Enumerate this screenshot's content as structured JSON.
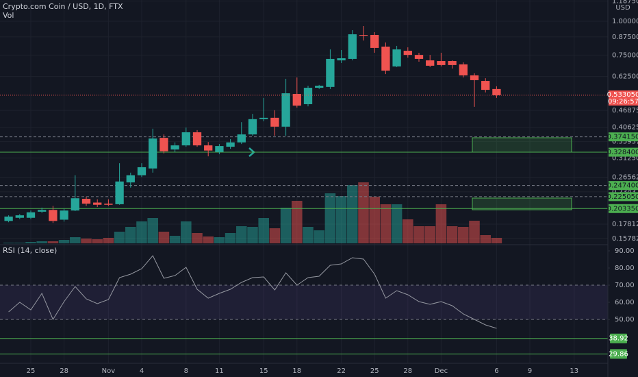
{
  "chart_data": [
    {
      "type": "candlestick",
      "title": "Crypto.com Coin / USD, 1D, FTX",
      "y_unit": "USD",
      "log_scale": true,
      "grid": true,
      "up_color": "#26a69a",
      "down_color": "#ef5350",
      "categories": [
        null,
        null,
        "25",
        null,
        null,
        "28",
        null,
        null,
        null,
        "Nov",
        null,
        null,
        "4",
        null,
        null,
        null,
        "8",
        null,
        null,
        "11",
        null,
        null,
        null,
        "15",
        null,
        null,
        "18",
        null,
        null,
        null,
        "22",
        null,
        null,
        "25",
        null,
        null,
        "28",
        null,
        null,
        "Dec",
        null,
        null,
        null,
        null,
        "6",
        null,
        null,
        "9",
        null,
        null,
        null,
        "13"
      ],
      "ohlc": {
        "open": [
          0.183,
          0.188,
          0.188,
          0.198,
          0.201,
          0.185,
          0.2,
          0.221,
          0.214,
          0.212,
          0.211,
          0.254,
          0.27,
          0.286,
          0.371,
          0.336,
          0.348,
          0.389,
          0.348,
          0.329,
          0.344,
          0.357,
          0.382,
          0.435,
          0.44,
          0.408,
          0.539,
          0.494,
          0.568,
          0.572,
          0.717,
          0.726,
          0.89,
          0.89,
          0.806,
          0.681,
          0.778,
          0.751,
          0.717,
          0.713,
          0.713,
          0.693,
          0.631,
          0.602,
          0.562,
          null,
          null,
          null,
          null,
          null,
          null,
          null
        ],
        "high": [
          0.192,
          0.194,
          0.2,
          0.205,
          0.208,
          0.203,
          0.27,
          0.225,
          0.22,
          0.22,
          0.299,
          0.276,
          0.299,
          0.401,
          0.382,
          0.357,
          0.405,
          0.396,
          0.358,
          0.352,
          0.367,
          0.424,
          0.455,
          0.521,
          0.469,
          0.613,
          0.62,
          0.578,
          0.582,
          0.787,
          0.783,
          0.927,
          0.96,
          0.911,
          0.835,
          0.811,
          0.801,
          0.765,
          0.751,
          0.765,
          0.717,
          0.705,
          0.642,
          0.616,
          0.575,
          null,
          null,
          null,
          null,
          null,
          null,
          null
        ],
        "low": [
          0.181,
          0.186,
          0.186,
          0.196,
          0.18,
          0.182,
          0.199,
          0.208,
          0.206,
          0.208,
          0.21,
          0.243,
          0.266,
          0.276,
          0.325,
          0.329,
          0.344,
          0.344,
          0.317,
          0.323,
          0.338,
          0.352,
          0.378,
          0.427,
          0.378,
          0.378,
          0.48,
          0.485,
          0.562,
          0.562,
          0.701,
          0.717,
          0.849,
          0.765,
          0.638,
          0.677,
          0.734,
          0.709,
          0.677,
          0.681,
          0.669,
          0.62,
          0.483,
          0.546,
          0.521,
          null,
          null,
          null,
          null,
          null,
          null,
          null
        ],
        "close": [
          0.19,
          0.192,
          0.197,
          0.201,
          0.183,
          0.2,
          0.222,
          0.212,
          0.21,
          0.21,
          0.256,
          0.27,
          0.289,
          0.369,
          0.331,
          0.348,
          0.389,
          0.348,
          0.333,
          0.346,
          0.357,
          0.382,
          0.435,
          0.44,
          0.408,
          0.542,
          0.488,
          0.568,
          0.578,
          0.726,
          0.73,
          0.895,
          0.885,
          0.797,
          0.657,
          0.787,
          0.751,
          0.726,
          0.685,
          0.689,
          0.689,
          0.631,
          0.606,
          0.558,
          0.533,
          null,
          null,
          null,
          null,
          null,
          null,
          null
        ]
      },
      "volume": {
        "name": "Vol",
        "ylim": [
          0,
          100
        ],
        "values": [
          1,
          1,
          2,
          3,
          3,
          5,
          9,
          7,
          6,
          8,
          17,
          24,
          32,
          37,
          17,
          11,
          32,
          15,
          10,
          9,
          15,
          25,
          24,
          37,
          22,
          52,
          62,
          24,
          19,
          73,
          69,
          85,
          89,
          68,
          57,
          57,
          35,
          25,
          25,
          57,
          25,
          24,
          33,
          12,
          8,
          null,
          null,
          null,
          null,
          null,
          null,
          null
        ]
      },
      "ylim": [
        0.1513,
        1.198
      ],
      "yticks": [
        {
          "value": 1.1875,
          "label": "1.187500"
        },
        {
          "value": 1,
          "label": "1.000000"
        },
        {
          "value": 0.875,
          "label": "0.875000"
        },
        {
          "value": 0.75,
          "label": "0.750000"
        },
        {
          "value": 0.625,
          "label": "0.625000"
        },
        {
          "value": 0.46875,
          "label": "0.468750"
        },
        {
          "value": 0.40625,
          "label": "0.406250"
        },
        {
          "value": 0.359375,
          "label": "0.359375"
        },
        {
          "value": 0.3125,
          "label": "0.312500"
        },
        {
          "value": 0.265625,
          "label": "0.265625"
        },
        {
          "value": 0.234375,
          "label": "0.234375"
        },
        {
          "value": 0.178125,
          "label": "0.178125"
        },
        {
          "value": 0.157825,
          "label": "0.157825"
        }
      ],
      "levels": [
        {
          "value": 0.37415,
          "label": "0.374150",
          "color": "#787b86",
          "dashed": true
        },
        {
          "value": 0.3284,
          "label": "0.328400",
          "color": "#4caf50",
          "dashed": false
        },
        {
          "value": 0.2474,
          "label": "0.247400",
          "color": "#787b86",
          "dashed": true
        },
        {
          "value": 0.22505,
          "label": "0.225050",
          "color": "#787b86",
          "dashed": true
        },
        {
          "value": 0.20335,
          "label": "0.203350",
          "color": "#4caf50",
          "dashed": false
        }
      ],
      "level_label_color": "#4caf50",
      "last_price": {
        "value": 0.53305,
        "label": "0.533050",
        "countdown": "09:26:57",
        "color": "#ef5350"
      }
    },
    {
      "type": "line",
      "title": "RSI (14, close)",
      "color": "#9598a1",
      "values": [
        54.4,
        60.0,
        55.6,
        65.2,
        50.0,
        60.4,
        69.2,
        62.0,
        59.2,
        61.6,
        74.4,
        76.4,
        79.6,
        87.2,
        74.0,
        75.6,
        80.4,
        67.6,
        62.4,
        65.2,
        67.6,
        71.6,
        74.4,
        74.8,
        67.2,
        77.2,
        70.0,
        74.4,
        75.2,
        81.6,
        82.4,
        86.0,
        85.2,
        76.4,
        62.4,
        66.8,
        64.4,
        60.4,
        58.8,
        60.4,
        58.0,
        53.2,
        50.0,
        46.8,
        44.8,
        null,
        null,
        null,
        null,
        null,
        null,
        null
      ],
      "ylim": [
        24.4,
        93.2
      ],
      "yticks": [
        {
          "value": 90,
          "label": "90.00"
        },
        {
          "value": 80,
          "label": "80.00"
        },
        {
          "value": 70,
          "label": "70.00"
        },
        {
          "value": 60,
          "label": "60.00"
        },
        {
          "value": 50,
          "label": "50.00"
        }
      ],
      "band": [
        50,
        70
      ],
      "band_color": "#7e57c2",
      "levels": [
        {
          "value": 38.92,
          "label": "38.92",
          "color": "#4caf50"
        },
        {
          "value": 29.86,
          "label": "29.86",
          "color": "#4caf50"
        }
      ]
    }
  ]
}
